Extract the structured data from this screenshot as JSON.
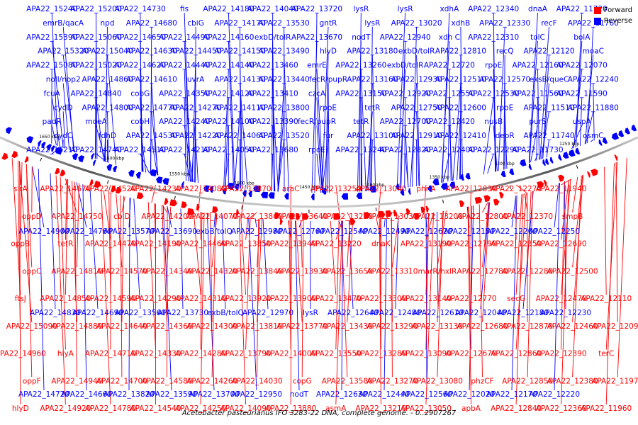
{
  "colors": {
    "forward": "#ff0000",
    "reverse": "#0000ff",
    "backbone": "#888888"
  },
  "legend": {
    "forward": "Forward",
    "reverse": "Reverse"
  },
  "caption": "Acetobacter pasteurianus IFO 3283-22 DNA, complete genome. - 0..2907267",
  "ticks": [
    "1250 kbp",
    "1300 kbp",
    "1350 kbp",
    "1400 kbp",
    "1450 kbp",
    "1500 kbp",
    "1550 kbp",
    "1600 kbp",
    "1650 kbp"
  ],
  "reverse_labels": [
    "APA22_15240",
    "emrB/qacA",
    "APA22_15390",
    "APA22_15320",
    "APA22_15080",
    "noll/nop2",
    "fcuA",
    "cydD",
    "padR",
    "cydC",
    "APA22_15210",
    "APA22_15200",
    "npd",
    "APA22_15060",
    "APA22_15040",
    "APA22_15020",
    "APA22_14860",
    "APA22_14840",
    "APA22_14800",
    "moeA",
    "fdhD",
    "APA22_14740",
    "APA22_14730",
    "APA22_14680",
    "APA22_14650",
    "APA22_14630",
    "APA22_14620",
    "APA22_14610",
    "cobG",
    "APA22_14770",
    "cobH",
    "APA22_14530",
    "APA22_14510",
    "fis",
    "cbiG",
    "APA22_14490",
    "APA22_14450",
    "APA22_14440",
    "uvrA",
    "APA22_14350",
    "APA22_14270",
    "APA22_14240",
    "APA22_14220",
    "APA22_14210",
    "APA22_14180",
    "APA22_14170",
    "APA22_14160",
    "APA22_14150",
    "APA22_14140",
    "APA22_14130",
    "APA22_14120",
    "APA22_14110",
    "APA22_14100",
    "APA22_14060",
    "APA22_14050",
    "APA22_14040",
    "APA22_13530",
    "exbD/tolR",
    "APA22_13490",
    "APA22_13460",
    "APA22_13440",
    "APA22_13410",
    "APA22_13800",
    "APA22_13390",
    "APA22_13520",
    "APA22_13680",
    "APA22_13720",
    "gntR",
    "APA22_13670",
    "hlyD",
    "emrE",
    "fecR/pupR",
    "czcA",
    "rpoE",
    "fecR/pupR",
    "fur",
    "rpoE",
    "lysR",
    "lysR",
    "nodT",
    "APA22_13180",
    "APA22_13260",
    "APA22_13160",
    "APA22_13150",
    "tetR",
    "tetR",
    "APA22_13100",
    "APA22_13240",
    "lysR",
    "APA22_13020",
    "APA22_12940",
    "exbD/tolR",
    "exbD/tolR",
    "APA22_12930",
    "APA22_12920",
    "APA22_12750",
    "APA22_12700",
    "APA22_12910",
    "APA22_12820",
    "xdhA",
    "xdhB",
    "xdh C",
    "APA22_12810",
    "APA22_12720",
    "APA22_12510",
    "APA22_12550",
    "APA22_12600",
    "APA22_12420",
    "APA22_12410",
    "APA22_12400",
    "APA22_12340",
    "APA22_12330",
    "APA22_12310",
    "recQ",
    "rpoE",
    "APA22_12570",
    "APA22_12530",
    "rpoE",
    "nusB",
    "deoR",
    "APA22_12290",
    "dnaA",
    "recF",
    "tolC",
    "APA22_12120",
    "APA22_12160",
    "exsB/queC",
    "APA22_11560",
    "APA22_11510",
    "purS",
    "APA22_11740",
    "APA22_11730",
    "APA22_11720",
    "APA22_11760",
    "bolA",
    "moaC",
    "APA22_12070",
    "APA22_12240",
    "APA22_11590",
    "APA22_11880",
    "uspA",
    "osmC"
  ],
  "forward_labels": [
    "hlyD",
    "oppF",
    "APA22_14960",
    "APA22_15090",
    "ftsJ",
    "oppC",
    "oppB",
    "oppD",
    "sirA",
    "APA22_14920",
    "APA22_14940",
    "hlyA",
    "APA22_14880",
    "APA22_14850",
    "APA22_14810",
    "tetR",
    "APA22_14750",
    "APA22_14670",
    "APA22_14780",
    "APA22_14700",
    "APA22_14710",
    "APA22_14640",
    "APA22_14590",
    "APA22_14570",
    "APA22_14470",
    "cbiD",
    "APA22_14520",
    "APA22_14540",
    "APA22_14580",
    "APA22_14330",
    "APA22_14360",
    "APA22_14290",
    "APA22_14340",
    "APA22_14190",
    "APA22_14200",
    "APA22_14230",
    "APA22_14250",
    "APA22_14260",
    "APA22_14280",
    "APA22_14300",
    "APA22_14310",
    "APA22_14320",
    "APA22_14460",
    "APA22_14070",
    "APA22_14080",
    "APA22_14090",
    "APA22_14030",
    "APA22_13790",
    "APA22_13810",
    "APA22_13920",
    "APA22_13840",
    "APA22_13850",
    "APA22_13860",
    "APA22_13870",
    "APA22_13880",
    "copG",
    "APA22_14000",
    "APA22_13770",
    "APA22_13900",
    "APA22_13930",
    "APA22_13940",
    "APA22_13640",
    "araC",
    "asmA",
    "APA22_13580",
    "APA22_13550",
    "APA22_13430",
    "APA22_13470",
    "APA22_13650",
    "APA22_13220",
    "APA22_13230",
    "APA22_13250",
    "APA22_13210",
    "APA22_13270",
    "APA22_13280",
    "APA22_13290",
    "APA22_13300",
    "APA22_13310",
    "dnaK",
    "APA22_13030",
    "APA22_13040",
    "APA22_13050",
    "APA22_13080",
    "APA22_13090",
    "APA22_13130",
    "APA22_13140",
    "marR/hxlR",
    "APA22_13190",
    "APA22_13200",
    "phnA",
    "apbA",
    "phzCF",
    "APA22_12670",
    "APA22_12680",
    "APA22_12770",
    "APA22_12780",
    "APA22_12790",
    "APA22_12800",
    "APA22_12830",
    "APA22_12840",
    "APA22_12850",
    "APA22_12860",
    "APA22_12870",
    "secG",
    "APA22_12280",
    "APA22_12350",
    "APA22_12370",
    "APA22_12270",
    "APA22_12360",
    "APA22_12380",
    "APA22_12390",
    "APA22_12460",
    "APA22_12470",
    "APA22_12500",
    "APA22_12690",
    "smpB",
    "APA22_11940",
    "APA22_11960",
    "APA22_11970",
    "terC",
    "APA22_12090",
    "APA22_12110"
  ],
  "mixed_labels": [
    "APA22_14720",
    "APA22_14830",
    "APA22_14900",
    "APA22_14660",
    "APA22_14690",
    "APA22_14760",
    "APA22_13820",
    "APA22_13560",
    "APA22_13570",
    "APA22_13590",
    "APA22_13730",
    "APA22_13690",
    "APA22_13700",
    "exbB/tolQ",
    "exbB/tolQ",
    "APA22_12950",
    "APA22_12970",
    "APA22_12980",
    "nodT",
    "lysR",
    "APA22_12760",
    "APA22_12630",
    "APA22_12640",
    "APA22_12540",
    "APA22_12440",
    "APA22_12480",
    "APA22_12490",
    "APA22_12560",
    "APA22_12610",
    "APA22_12620",
    "APA22_12020",
    "APA22_12040",
    "APA22_12150",
    "APA22_12170",
    "APA22_12180",
    "APA22_12200",
    "APA22_12220",
    "APA22_12230",
    "APA22_12250"
  ]
}
